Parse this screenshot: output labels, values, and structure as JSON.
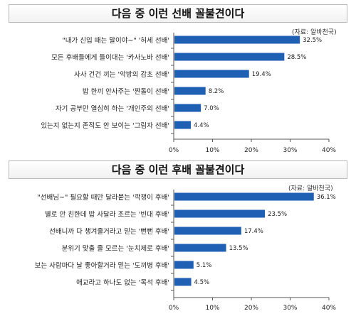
{
  "chart_data": [
    {
      "type": "bar",
      "orientation": "horizontal",
      "title": "다음 중 이런 선배 꼴불견이다",
      "source": "(자료: 알바천국)",
      "categories": [
        "\"내가 신입 때는 말이야~\" '허세 선배'",
        "모든 후배들에게 들이대는 '카사노바 선배'",
        "사사 건건 끼는 '악방의 감초 선배'",
        "밥 한끼 안사주는 '짠돌이 선배'",
        "자기 공부만 열심히 하는 '개인주의 선배'",
        "있는지 없는지 존적도 안 보이는 '그림자 선배'"
      ],
      "values": [
        32.5,
        28.5,
        19.4,
        8.2,
        7.0,
        4.4
      ],
      "value_labels": [
        "32.5%",
        "28.5%",
        "19.4%",
        "8.2%",
        "7.0%",
        "4.4%"
      ],
      "xlim": [
        0,
        40
      ],
      "ticks": [
        "0%",
        "10%",
        "20%",
        "30%",
        "40%"
      ],
      "bar_color": "#1f5fb4",
      "grid": false
    },
    {
      "type": "bar",
      "orientation": "horizontal",
      "title": "다음 중 이런 후배 꼴불견이다",
      "source": "(자료: 알바천국)",
      "categories": [
        "\"선배님~\" 필요할 때만 달라붙는 '깍쟁이 후배'",
        "별로 안 친한데 밥 사달라 조르는 '빈대 후배'",
        "선배니까 다 챙겨줄거라고 믿는 '뻔뻔 후배'",
        "분위기 맞출 줄 모르는 '눈치제로 후배'",
        "보는 사람마다 날 좋아할거라 믿는 '도끼병 후배'",
        "애교라고 하나도 없는 '목석 후배'"
      ],
      "values": [
        36.1,
        23.5,
        17.4,
        13.5,
        5.1,
        4.5
      ],
      "value_labels": [
        "36.1%",
        "23.5%",
        "17.4%",
        "13.5%",
        "5.1%",
        "4.5%"
      ],
      "xlim": [
        0,
        40
      ],
      "ticks": [
        "0%",
        "10%",
        "20%",
        "30%",
        "40%"
      ],
      "bar_color": "#1f5fb4",
      "grid": false
    }
  ]
}
